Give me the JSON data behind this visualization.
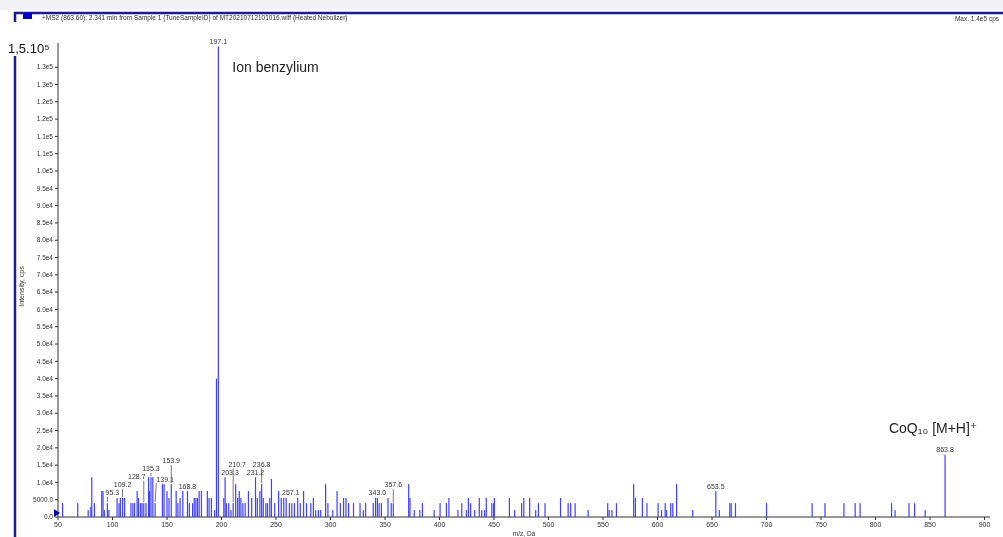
{
  "chart_data": {
    "type": "bar",
    "title": "+MS2 (863.60): 2.341 min from Sample 1 (TuneSampleID) of MT20210712101016.wiff (Heated Nebulizer)",
    "xlabel": "m/z, Da",
    "ylabel": "Intensity, cps",
    "annotations": [
      "Max. 1.4e5 cps",
      "1,5.10⁵",
      {
        "text": "95.3",
        "x": 95.3,
        "y": 4000
      },
      {
        "text": "109.2",
        "x": 109.2,
        "y": 5500
      },
      {
        "text": "128.7",
        "x": 128.7,
        "y": 4000
      },
      {
        "text": "135.3",
        "x": 135.3,
        "y": 11500
      },
      {
        "text": "139.1",
        "x": 139.1,
        "y": 4000
      },
      {
        "text": "153.9",
        "x": 153.9,
        "y": 9500
      },
      {
        "text": "168.8",
        "x": 168.8,
        "y": 7500
      },
      {
        "text": "197.1",
        "x": 197.1,
        "y": 136000
      },
      {
        "text": "203.3",
        "x": 203.3,
        "y": 11500
      },
      {
        "text": "210.7",
        "x": 210.7,
        "y": 4000
      },
      {
        "text": "231.2",
        "x": 231.2,
        "y": 11500
      },
      {
        "text": "236.8",
        "x": 236.8,
        "y": 9500
      },
      {
        "text": "257.1",
        "x": 257.1,
        "y": 5500
      },
      {
        "text": "343.0",
        "x": 343.0,
        "y": 5500
      },
      {
        "text": "357.6",
        "x": 357.6,
        "y": 4000
      },
      {
        "text": "653.5",
        "x": 653.5,
        "y": 7500
      },
      {
        "text": "863.8",
        "x": 863.8,
        "y": 18000
      },
      {
        "text": "Ion benzylium",
        "x": 197.1,
        "y": 136000
      },
      {
        "text": "CoQ₁₀ [M+H]⁺",
        "x": 863.8,
        "y": 18000
      }
    ],
    "xlim": [
      50,
      905
    ],
    "xticks": [
      50,
      100,
      150,
      200,
      250,
      300,
      350,
      400,
      450,
      500,
      550,
      600,
      650,
      700,
      750,
      800,
      850,
      900
    ],
    "ylim": [
      0,
      137000
    ],
    "yticks": [
      {
        "value": 0,
        "label": "0.0"
      },
      {
        "value": 5000,
        "label": "5000.0"
      },
      {
        "value": 10000,
        "label": "1.0e4"
      },
      {
        "value": 15000,
        "label": "1.5e4"
      },
      {
        "value": 20000,
        "label": "2.0e4"
      },
      {
        "value": 25000,
        "label": "2.5e4"
      },
      {
        "value": 30000,
        "label": "3.0e4"
      },
      {
        "value": 35000,
        "label": "3.5e4"
      },
      {
        "value": 40000,
        "label": "4.0e4"
      },
      {
        "value": 45000,
        "label": "4.5e4"
      },
      {
        "value": 50000,
        "label": "5.0e4"
      },
      {
        "value": 55000,
        "label": "5.5e4"
      },
      {
        "value": 60000,
        "label": "6.0e4"
      },
      {
        "value": 65000,
        "label": "6.5e4"
      },
      {
        "value": 70000,
        "label": "7.0e4"
      },
      {
        "value": 75000,
        "label": "7.5e4"
      },
      {
        "value": 80000,
        "label": "8.0e4"
      },
      {
        "value": 85000,
        "label": "8.5e4"
      },
      {
        "value": 90000,
        "label": "9.0e4"
      },
      {
        "value": 95000,
        "label": "9.5e4"
      },
      {
        "value": 100000,
        "label": "1.0e5"
      },
      {
        "value": 105000,
        "label": "1.1e5"
      },
      {
        "value": 110000,
        "label": "1.1e5"
      },
      {
        "value": 115000,
        "label": "1.2e5"
      },
      {
        "value": 120000,
        "label": "1.2e5"
      },
      {
        "value": 125000,
        "label": "1.3e5"
      },
      {
        "value": 130000,
        "label": "1.3e5"
      }
    ],
    "series": [
      {
        "color": "#4040ff",
        "x": [
          54.2,
          68.1,
          77.7,
          80.1,
          81.0,
          83.4,
          90.1,
          91.3,
          92.5,
          95.3,
          96.7,
          104.2,
          106.0,
          107.2,
          109.2,
          111.1,
          116.9,
          118.7,
          120.2,
          122.6,
          123.8,
          125.6,
          127.1,
          128.7,
          130.7,
          133.1,
          134.0,
          135.3,
          137.0,
          139.1,
          145.8,
          147.3,
          150.0,
          151.8,
          153.9,
          158.4,
          160.0,
          162.0,
          164.5,
          168.8,
          170.5,
          173.5,
          175.0,
          176.5,
          178.0,
          179.5,
          181.6,
          187.0,
          188.6,
          190.7,
          193.7,
          195.4,
          197.1,
          202.1,
          203.3,
          204.5,
          206.6,
          208.7,
          210.7,
          213.0,
          214.8,
          216.3,
          217.8,
          219.6,
          221.7,
          224.7,
          227.7,
          231.2,
          232.8,
          235.2,
          236.8,
          238.3,
          240.7,
          242.2,
          244.3,
          245.8,
          248.8,
          252.4,
          254.8,
          257.1,
          259.3,
          262.3,
          264.5,
          266.9,
          269.9,
          272.3,
          275.3,
          278.0,
          281.9,
          284.3,
          286.4,
          288.9,
          291.0,
          295.5,
          297.6,
          302.1,
          306.0,
          309.0,
          312.0,
          314.2,
          316.6,
          321.1,
          327.1,
          330.1,
          332.2,
          339.2,
          341.3,
          343.0,
          344.6,
          346.7,
          352.7,
          355.7,
          357.6,
          371.7,
          372.9,
          376.8,
          381.9,
          384.3,
          395.1,
          400.5,
          406.3,
          408.6,
          416.9,
          420.4,
          424.6,
          426.5,
          428.5,
          432.3,
          436.5,
          438.7,
          441.3,
          442.9,
          448.0,
          449.7,
          450.3,
          464.1,
          468.9,
          475.3,
          477.3,
          482.7,
          488.2,
          490.7,
          496.8,
          511.0,
          518.0,
          520.3,
          524.4,
          536.3,
          554.3,
          555.6,
          558.2,
          562.3,
          578.1,
          579.7,
          586.1,
          590.3,
          600.5,
          603.7,
          607.0,
          608.2,
          612.1,
          614.0,
          617.5,
          632.3,
          653.5,
          656.7,
          666.3,
          667.6,
          671.5,
          700.0,
          741.8,
          753.6,
          771.0,
          781.3,
          785.8,
          814.7,
          817.9,
          830.7,
          835.8,
          845.5,
          863.8
        ],
        "values": [
          4000,
          4000,
          2000,
          3000,
          11500,
          4000,
          7500,
          7500,
          2000,
          4000,
          2000,
          5500,
          4000,
          5500,
          5500,
          5500,
          4000,
          4000,
          4000,
          7500,
          5500,
          4000,
          4000,
          4000,
          4000,
          11500,
          7500,
          11500,
          11500,
          4000,
          9500,
          9500,
          7500,
          5500,
          9500,
          7500,
          4000,
          5500,
          7500,
          7500,
          4000,
          4000,
          5500,
          5500,
          5500,
          7500,
          7500,
          7500,
          5500,
          5500,
          2000,
          40000,
          136000,
          5500,
          11500,
          4000,
          4000,
          2000,
          4000,
          9500,
          5500,
          7500,
          5500,
          4000,
          4000,
          7500,
          5500,
          11500,
          5500,
          7500,
          9500,
          5500,
          4000,
          4000,
          5500,
          11000,
          4000,
          7500,
          5500,
          5500,
          5500,
          4000,
          4000,
          4000,
          5500,
          4000,
          7500,
          4000,
          4000,
          5500,
          2000,
          2000,
          2000,
          9500,
          4000,
          2000,
          7500,
          4000,
          5500,
          5500,
          4000,
          4000,
          4000,
          2000,
          4000,
          4000,
          5500,
          5500,
          4000,
          4000,
          5500,
          4000,
          4000,
          9500,
          5500,
          2000,
          2000,
          4000,
          2000,
          4000,
          4000,
          5500,
          2000,
          4000,
          2000,
          5500,
          4000,
          2000,
          5500,
          2000,
          2000,
          5500,
          4000,
          4000,
          5500,
          5500,
          2000,
          4000,
          5500,
          5500,
          2000,
          4000,
          4000,
          5500,
          4000,
          4000,
          4000,
          2000,
          4000,
          2000,
          2000,
          4000,
          9500,
          5500,
          5500,
          4000,
          4000,
          2000,
          4000,
          2000,
          4000,
          4000,
          9500,
          2000,
          7500,
          2000,
          4000,
          4000,
          4000,
          4000,
          4000,
          4000,
          4000,
          4000,
          4000,
          4000,
          2000,
          4000,
          4000,
          2000,
          18000
        ]
      }
    ]
  }
}
